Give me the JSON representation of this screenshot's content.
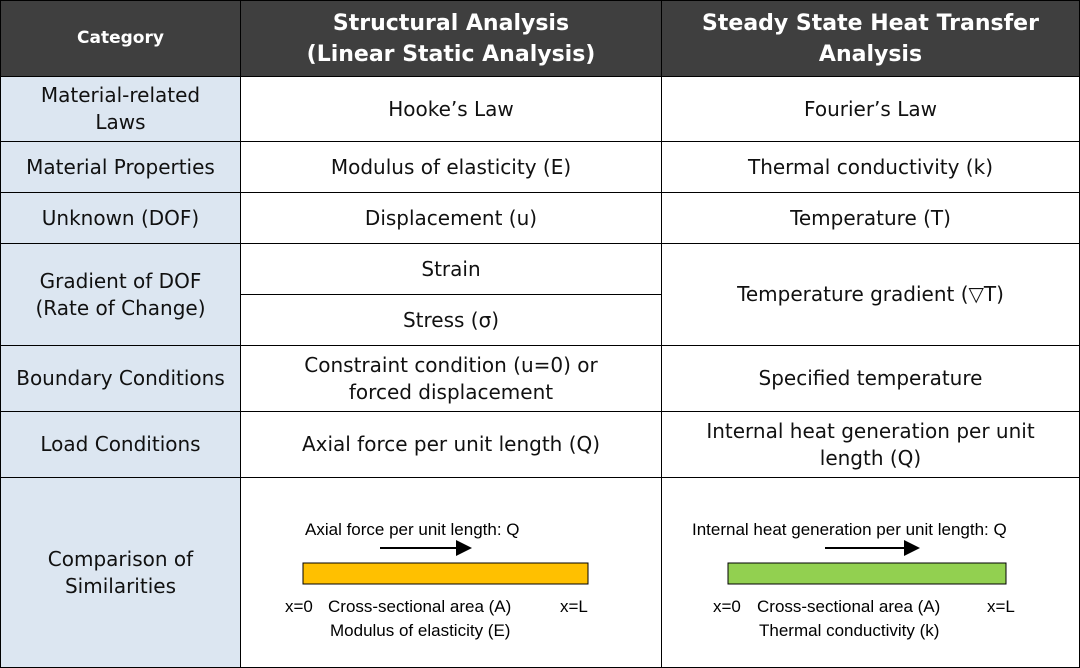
{
  "header": {
    "category": "Category",
    "structural": [
      "Structural Analysis",
      "(Linear Static Analysis)"
    ],
    "heat": [
      "Steady State Heat Transfer",
      "Analysis"
    ]
  },
  "rows": [
    {
      "category": [
        "Material-related",
        "Laws"
      ],
      "structural": [
        "Hooke’s Law"
      ],
      "heat": [
        "Fourier’s Law"
      ]
    },
    {
      "category": [
        "Material Properties"
      ],
      "structural": [
        "Modulus of elasticity (E)"
      ],
      "heat": [
        "Thermal conductivity (k)"
      ]
    },
    {
      "category": [
        "Unknown (DOF)"
      ],
      "structural": [
        "Displacement (u)"
      ],
      "heat": [
        "Temperature (T)"
      ]
    },
    {
      "category": [
        "Gradient of DOF",
        "(Rate of Change)"
      ],
      "structural": [
        "Strain",
        "Stress (σ)"
      ],
      "heat": [
        "Temperature gradient (▽T)"
      ]
    },
    {
      "category": [
        "Boundary Conditions"
      ],
      "structural": [
        "Constraint condition (u=0) or",
        "forced displacement"
      ],
      "heat": [
        "Specified temperature"
      ]
    },
    {
      "category": [
        "Load Conditions"
      ],
      "structural": [
        "Axial force per unit length (Q)"
      ],
      "heat": [
        "Internal heat generation per unit",
        "length (Q)"
      ]
    },
    {
      "category": [
        "Comparison of",
        "Similarities"
      ],
      "structural": {
        "load": "Axial force per unit length: Q",
        "left": "x=0",
        "area": "Cross-sectional area (A)",
        "right": "x=L",
        "property": "Modulus of elasticity (E)"
      },
      "heat": {
        "load": "Internal heat generation per unit length: Q",
        "left": "x=0",
        "area": "Cross-sectional area (A)",
        "right": "x=L",
        "property": "Thermal conductivity (k)"
      }
    }
  ]
}
